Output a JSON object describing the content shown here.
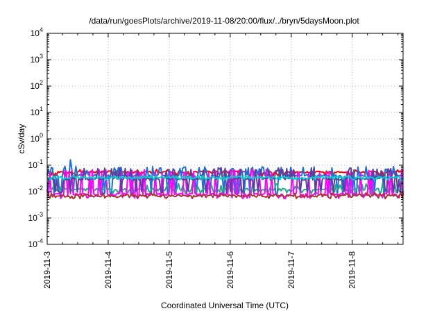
{
  "chart_data": {
    "type": "line",
    "title": "/data/run/goesPlots/archive/2019-11-08/20:00/flux/../bryn/5daysMoon.plot",
    "xlabel": "Coordinated Universal Time (UTC)",
    "ylabel": "cSv/day",
    "y_scale": "log",
    "ylim": [
      0.0001,
      10000
    ],
    "y_ticks": [
      {
        "base": "10",
        "exp": "-4",
        "value": 0.0001
      },
      {
        "base": "10",
        "exp": "-3",
        "value": 0.001
      },
      {
        "base": "10",
        "exp": "-2",
        "value": 0.01
      },
      {
        "base": "10",
        "exp": "-1",
        "value": 0.1
      },
      {
        "base": "10",
        "exp": "0",
        "value": 1
      },
      {
        "base": "10",
        "exp": "1",
        "value": 10
      },
      {
        "base": "10",
        "exp": "2",
        "value": 100
      },
      {
        "base": "10",
        "exp": "3",
        "value": 1000
      },
      {
        "base": "10",
        "exp": "4",
        "value": 10000
      }
    ],
    "x_range": [
      "2019-11-03 00:00",
      "2019-11-08 20:00"
    ],
    "x_ticks": [
      "2019-11-3",
      "2019-11-4",
      "2019-11-5",
      "2019-11-6",
      "2019-11-7",
      "2019-11-8"
    ],
    "grid": true,
    "series": [
      {
        "color": "#ff0000",
        "typical_value": 0.055,
        "noise_low": 0.04,
        "noise_high": 0.07,
        "values_desc": "fluctuating ~0.04-0.07"
      },
      {
        "color": "#1a6fdf",
        "typical_value": 0.04,
        "noise_low": 0.008,
        "noise_high": 0.09,
        "peak": 0.16
      },
      {
        "color": "#22aa88",
        "typical_value": 0.012,
        "noise_low": 0.009,
        "noise_high": 0.02
      },
      {
        "color": "#ff00ff",
        "typical_value": 0.008,
        "noise_low": 0.006,
        "noise_high": 0.07
      },
      {
        "color": "#aa3333",
        "typical_value": 0.007,
        "noise_low": 0.006,
        "noise_high": 0.009
      },
      {
        "color": "#5a3fa0",
        "typical_value": 0.03,
        "noise_low": 0.01,
        "noise_high": 0.08
      },
      {
        "color": "#00cccc",
        "typical_value": 0.035,
        "noise_low": 0.03,
        "noise_high": 0.04
      }
    ]
  }
}
